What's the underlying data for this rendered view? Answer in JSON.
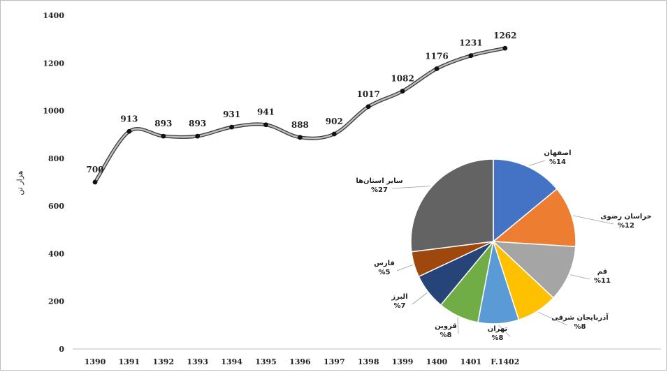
{
  "chart_data": [
    {
      "type": "line",
      "ylabel": "هزار تن",
      "ylim": [
        0,
        1400
      ],
      "yticks": [
        0,
        200,
        400,
        600,
        800,
        1000,
        1200,
        1400
      ],
      "x": [
        "1390",
        "1391",
        "1392",
        "1393",
        "1394",
        "1395",
        "1396",
        "1397",
        "1398",
        "1399",
        "1400",
        "1401",
        "F.1402"
      ],
      "values": [
        700,
        913,
        893,
        893,
        931,
        941,
        888,
        902,
        1017,
        1082,
        1176,
        1231,
        1262
      ],
      "color": "#7f7f7f",
      "grid": false
    },
    {
      "type": "pie",
      "slices": [
        {
          "label": "اصفهان",
          "pct": "%14",
          "value": 14,
          "color": "#4472c4"
        },
        {
          "label": "خراسان رضوی",
          "pct": "%12",
          "value": 12,
          "color": "#ed7d31"
        },
        {
          "label": "قم",
          "pct": "%11",
          "value": 11,
          "color": "#a5a5a5"
        },
        {
          "label": "آذربایجان شرقی",
          "pct": "%8",
          "value": 8,
          "color": "#ffc000"
        },
        {
          "label": "تهران",
          "pct": "%8",
          "value": 8,
          "color": "#5b9bd5"
        },
        {
          "label": "قزوین",
          "pct": "%8",
          "value": 8,
          "color": "#70ad47"
        },
        {
          "label": "البرز",
          "pct": "%7",
          "value": 7,
          "color": "#264478"
        },
        {
          "label": "فارس",
          "pct": "%5",
          "value": 5,
          "color": "#9e480e"
        },
        {
          "label": "سایر استان‌ها",
          "pct": "%27",
          "value": 27,
          "color": "#636363"
        }
      ]
    }
  ]
}
